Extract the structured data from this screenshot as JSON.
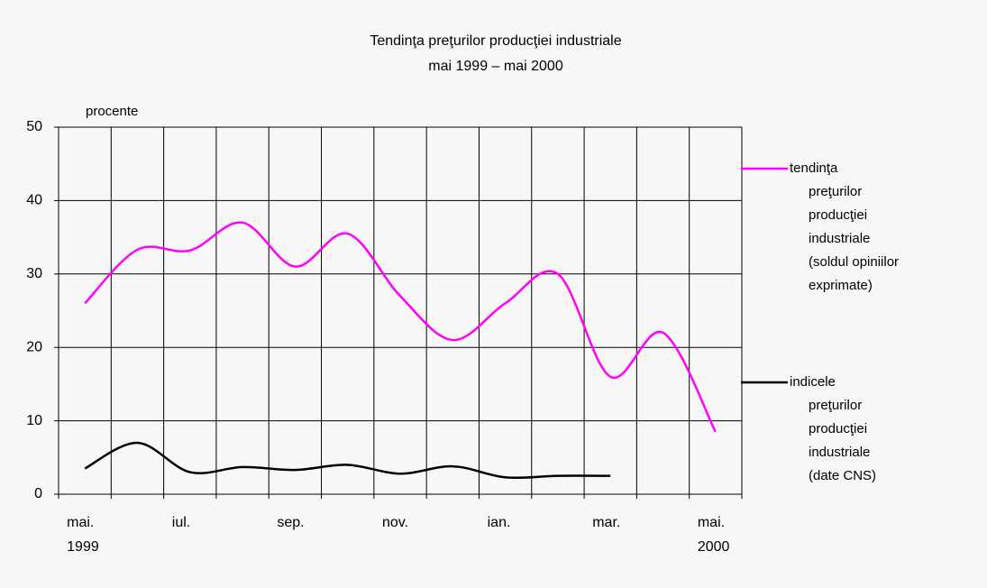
{
  "chart_data": {
    "type": "line",
    "title": "Tendinţa preţurilor producţiei industriale",
    "subtitle": "mai 1999 – mai 2000",
    "y_label": "procente",
    "categories": [
      "mai. 1999",
      null,
      "iul.",
      null,
      "sep.",
      null,
      "nov.",
      null,
      "ian.",
      null,
      "mar.",
      null,
      "mai. 2000"
    ],
    "series": [
      {
        "name": "tendinţa preţurilor producţiei industriale (soldul opiniilor exprimate)",
        "color": "#ff00ff",
        "values": [
          26,
          33.3,
          33.2,
          37,
          31,
          35.5,
          27,
          21,
          26,
          30,
          16,
          22,
          8.5
        ]
      },
      {
        "name": "indicele preţurilor producţiei industriale (date CNS)",
        "color": "#000000",
        "values": [
          3.5,
          7,
          3,
          3.7,
          3.3,
          4,
          2.8,
          3.8,
          2.3,
          2.5,
          2.5,
          null,
          null
        ]
      }
    ],
    "ylim": [
      0,
      50
    ],
    "yticks": [
      0,
      10,
      20,
      30,
      40,
      50
    ],
    "grid": true,
    "legend": "right"
  }
}
